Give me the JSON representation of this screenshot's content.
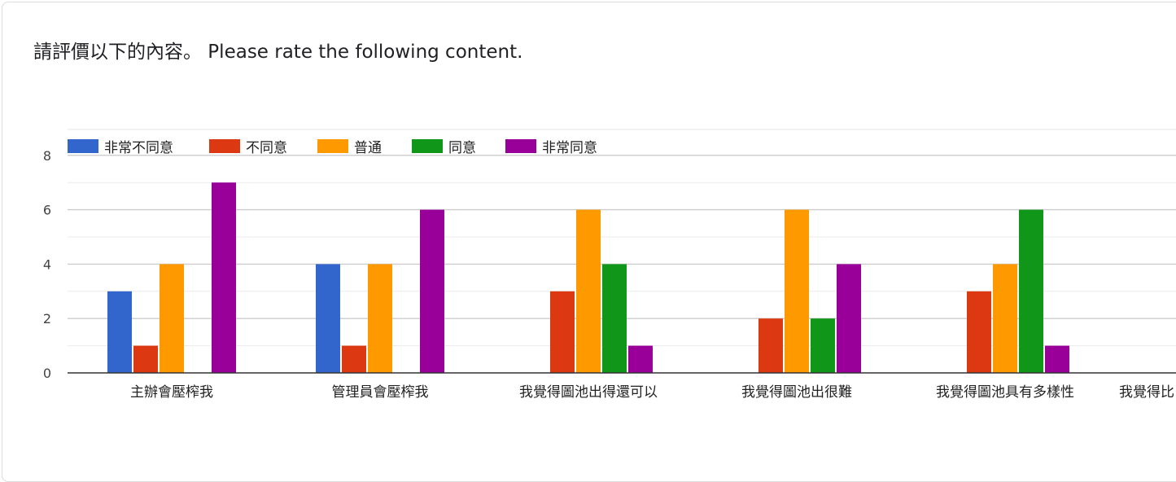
{
  "question": {
    "title": "請評價以下的內容。 Please rate the following content."
  },
  "chart_data": {
    "type": "bar",
    "categories": [
      "主辦會壓榨我",
      "管理員會壓榨我",
      "我覺得圖池出得還可以",
      "我覺得圖池出很難",
      "我覺得圖池具有多樣性",
      "我覺得比"
    ],
    "series": [
      {
        "name": "非常不同意",
        "color": "#3366cc",
        "values": [
          3,
          4,
          0,
          0,
          0,
          0
        ]
      },
      {
        "name": "不同意",
        "color": "#dc3912",
        "values": [
          1,
          1,
          3,
          2,
          3,
          0
        ]
      },
      {
        "name": "普通",
        "color": "#ff9900",
        "values": [
          4,
          4,
          6,
          6,
          4,
          0
        ]
      },
      {
        "name": "同意",
        "color": "#109618",
        "values": [
          0,
          0,
          4,
          2,
          6,
          0
        ]
      },
      {
        "name": "非常同意",
        "color": "#990099",
        "values": [
          7,
          6,
          1,
          4,
          1,
          0
        ]
      }
    ],
    "yticks": [
      0,
      2,
      4,
      6,
      8
    ],
    "ylim": [
      0,
      8
    ],
    "title": "",
    "xlabel": "",
    "ylabel": "",
    "grid": true,
    "legend_position": "top-left"
  }
}
